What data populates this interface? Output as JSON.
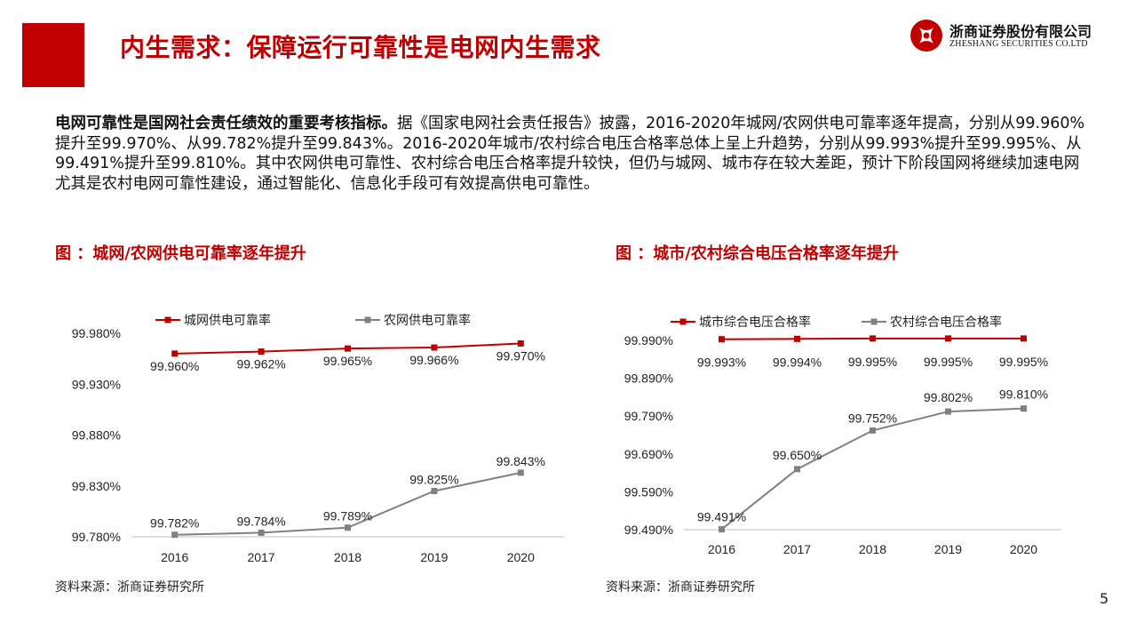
{
  "header": {
    "title": "内生需求：保障运行可靠性是电网内生需求",
    "logo_cn": "浙商证券股份有限公司",
    "logo_en": "ZHESHANG SECURITIES CO.LTD"
  },
  "body": {
    "lead": "电网可靠性是国网社会责任绩效的重要考核指标。",
    "text": "据《国家电网社会责任报告》披露，2016-2020年城网/农网供电可靠率逐年提高，分别从99.960%提升至99.970%、从99.782%提升至99.843%。2016-2020年城市/农村综合电压合格率总体上呈上升趋势，分别从99.993%提升至99.995%、从99.491%提升至99.810%。其中农网供电可靠性、农村综合电压合格率提升较快，但仍与城网、城市存在较大差距，预计下阶段国网将继续加速电网尤其是农村电网可靠性建设，通过智能化、信息化手段可有效提高供电可靠性。"
  },
  "figures": [
    {
      "title": "图 ：城网/农网供电可靠率逐年提升",
      "source": "资料来源：浙商证券研究所"
    },
    {
      "title": "图 ：城市/农村综合电压合格率逐年提升",
      "source": "资料来源：浙商证券研究所"
    }
  ],
  "page_number": "5",
  "colors": {
    "accent": "#c00000",
    "series_red": "#c00000",
    "series_gray": "#808080"
  },
  "chart_data": [
    {
      "type": "line",
      "x": [
        "2016",
        "2017",
        "2018",
        "2019",
        "2020"
      ],
      "yticks": [
        "99.980%",
        "99.930%",
        "99.880%",
        "99.830%",
        "99.780%"
      ],
      "ylim": [
        99.78,
        99.98
      ],
      "legend_placement": "top",
      "series": [
        {
          "name": "城网供电可靠率",
          "color": "#c00000",
          "marker": "square",
          "values": [
            99.96,
            99.962,
            99.965,
            99.966,
            99.97
          ],
          "labels": [
            "99.960%",
            "99.962%",
            "99.965%",
            "99.966%",
            "99.970%"
          ]
        },
        {
          "name": "农网供电可靠率",
          "color": "#808080",
          "marker": "square",
          "values": [
            99.782,
            99.784,
            99.789,
            99.825,
            99.843
          ],
          "labels": [
            "99.782%",
            "99.784%",
            "99.789%",
            "99.825%",
            "99.843%"
          ]
        }
      ]
    },
    {
      "type": "line",
      "x": [
        "2016",
        "2017",
        "2018",
        "2019",
        "2020"
      ],
      "yticks": [
        "99.990%",
        "99.890%",
        "99.790%",
        "99.690%",
        "99.590%",
        "99.490%"
      ],
      "ylim": [
        99.49,
        99.99
      ],
      "legend_placement": "top",
      "series": [
        {
          "name": "城市综合电压合格率",
          "color": "#c00000",
          "marker": "square",
          "values": [
            99.993,
            99.994,
            99.995,
            99.995,
            99.995
          ],
          "labels": [
            "99.993%",
            "99.994%",
            "99.995%",
            "99.995%",
            "99.995%"
          ]
        },
        {
          "name": "农村综合电压合格率",
          "color": "#808080",
          "marker": "square",
          "values": [
            99.491,
            99.65,
            99.752,
            99.802,
            99.81
          ],
          "labels": [
            "99.491%",
            "99.650%",
            "99.752%",
            "99.802%",
            "99.810%"
          ]
        }
      ]
    }
  ]
}
